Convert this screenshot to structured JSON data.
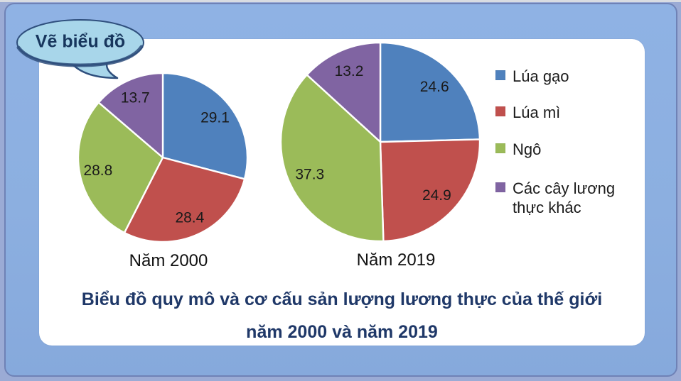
{
  "callout": {
    "label": "Vẽ biểu đồ"
  },
  "legend": {
    "position": "right",
    "items": [
      {
        "label": "Lúa gạo",
        "color": "#4F81BD"
      },
      {
        "label": "Lúa mì",
        "color": "#C0504D"
      },
      {
        "label": "Ngô",
        "color": "#9BBB59"
      },
      {
        "label": "Các cây lương thực khác",
        "color": "#8064A2"
      }
    ]
  },
  "caption": {
    "line1": "Biểu đồ quy mô và cơ cấu sản lượng lương thực của thế giới",
    "line2": "năm 2000 và năm 2019"
  },
  "chart_data": [
    {
      "type": "pie",
      "title": "Năm 2000",
      "categories": [
        "Lúa gạo",
        "Lúa mì",
        "Ngô",
        "Các cây lương thực khác"
      ],
      "values": [
        29.1,
        28.4,
        28.8,
        13.7
      ],
      "colors": [
        "#4F81BD",
        "#C0504D",
        "#9BBB59",
        "#8064A2"
      ],
      "start_angle_deg": 0,
      "direction": "clockwise",
      "slice_labels": [
        "29.1",
        "28.4",
        "28.8",
        "13.7"
      ]
    },
    {
      "type": "pie",
      "title": "Năm 2019",
      "categories": [
        "Lúa gạo",
        "Lúa mì",
        "Ngô",
        "Các cây lương thực khác"
      ],
      "values": [
        24.6,
        24.9,
        37.3,
        13.2
      ],
      "colors": [
        "#4F81BD",
        "#C0504D",
        "#9BBB59",
        "#8064A2"
      ],
      "start_angle_deg": 0,
      "direction": "clockwise",
      "slice_labels": [
        "24.6",
        "24.9",
        "37.3",
        "13.2"
      ]
    }
  ],
  "colors": {
    "background": "#8CAFE0",
    "frame_border": "#6F82B6",
    "panel": "#FFFFFF",
    "caption_text": "#1F3868",
    "slice_label_text": "#1A1A1A",
    "callout_fill": "#A8D6EA",
    "callout_outline": "#2F4F7D"
  }
}
